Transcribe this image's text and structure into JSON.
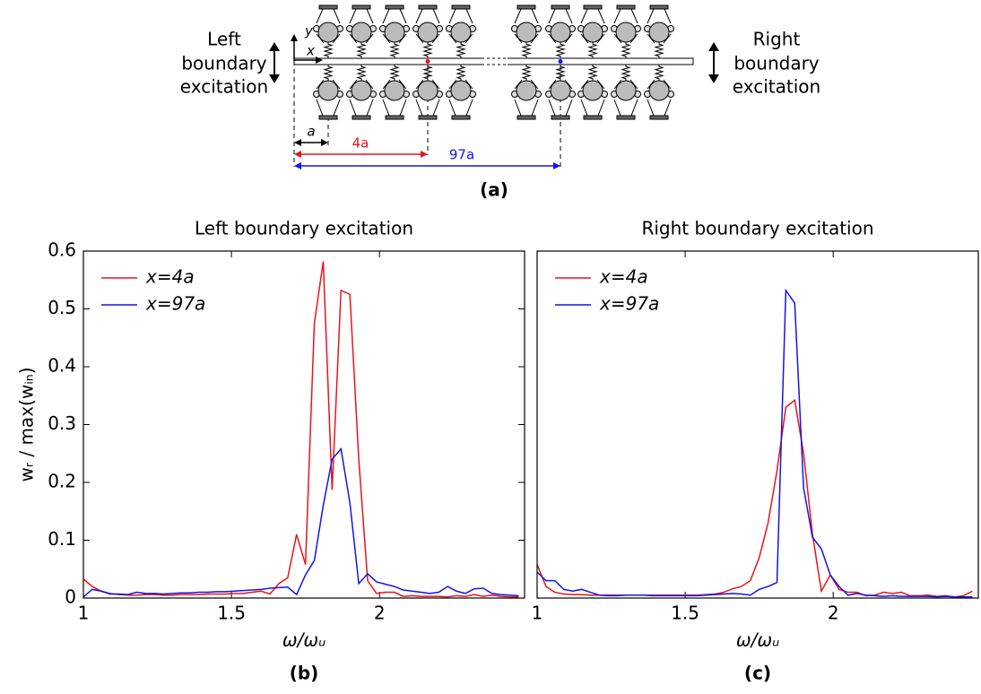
{
  "figure": {
    "panel_label": "(a)",
    "left_label": [
      "Left",
      "boundary",
      "excitation"
    ],
    "right_label": [
      "Right",
      "boundary",
      "excitation"
    ],
    "axis_x": "x",
    "axis_y": "y",
    "dim_a": "a",
    "dim_4a": "4a",
    "dim_97a": "97a"
  },
  "chart_data": [
    {
      "type": "line",
      "title": "Left boundary excitation",
      "panel_label": "(b)",
      "x_label": "ω/ωᵤ",
      "y_label": "wᵣ / max(wᵢₙ)",
      "xlim": [
        1,
        2.49
      ],
      "ylim": [
        0,
        0.6
      ],
      "xticks": [
        1,
        1.5,
        2
      ],
      "yticks": [
        0,
        0.1,
        0.2,
        0.3,
        0.4,
        0.5,
        0.6
      ],
      "legend": "upper left",
      "grid": false,
      "x": [
        1.0,
        1.03,
        1.06,
        1.09,
        1.12,
        1.15,
        1.18,
        1.21,
        1.24,
        1.27,
        1.3,
        1.33,
        1.36,
        1.39,
        1.42,
        1.45,
        1.48,
        1.51,
        1.54,
        1.57,
        1.6,
        1.63,
        1.66,
        1.69,
        1.72,
        1.75,
        1.78,
        1.81,
        1.84,
        1.87,
        1.9,
        1.93,
        1.96,
        1.99,
        2.02,
        2.05,
        2.08,
        2.11,
        2.14,
        2.17,
        2.2,
        2.23,
        2.26,
        2.29,
        2.32,
        2.35,
        2.38,
        2.41,
        2.44,
        2.47
      ],
      "series": [
        {
          "name": "x=4a",
          "color": "#e8141b",
          "values": [
            0.033,
            0.02,
            0.012,
            0.008,
            0.006,
            0.005,
            0.005,
            0.006,
            0.006,
            0.005,
            0.005,
            0.006,
            0.006,
            0.006,
            0.007,
            0.007,
            0.007,
            0.008,
            0.008,
            0.01,
            0.012,
            0.007,
            0.025,
            0.035,
            0.11,
            0.058,
            0.475,
            0.582,
            0.187,
            0.532,
            0.525,
            0.24,
            0.03,
            0.008,
            0.01,
            0.01,
            0.003,
            0.004,
            0.003,
            0.003,
            0.003,
            0.002,
            0.004,
            0.003,
            0.006,
            0.003,
            0.005,
            0.003,
            0.002,
            0.002
          ]
        },
        {
          "name": "x=97a",
          "color": "#1414e6",
          "values": [
            0.002,
            0.015,
            0.012,
            0.007,
            0.007,
            0.006,
            0.01,
            0.008,
            0.008,
            0.007,
            0.008,
            0.009,
            0.009,
            0.01,
            0.01,
            0.011,
            0.011,
            0.012,
            0.013,
            0.014,
            0.015,
            0.017,
            0.018,
            0.019,
            0.006,
            0.04,
            0.065,
            0.16,
            0.24,
            0.258,
            0.165,
            0.025,
            0.042,
            0.028,
            0.024,
            0.02,
            0.014,
            0.012,
            0.01,
            0.008,
            0.01,
            0.02,
            0.012,
            0.008,
            0.016,
            0.017,
            0.008,
            0.006,
            0.005,
            0.004
          ]
        }
      ]
    },
    {
      "type": "line",
      "title": "Right boundary excitation",
      "panel_label": "(c)",
      "x_label": "ω/ωᵤ",
      "xlim": [
        1,
        2.49
      ],
      "ylim": [
        0,
        0.6
      ],
      "xticks": [
        1,
        1.5,
        2
      ],
      "legend": "upper left",
      "grid": false,
      "x": [
        1.0,
        1.03,
        1.06,
        1.09,
        1.12,
        1.15,
        1.18,
        1.21,
        1.24,
        1.27,
        1.3,
        1.33,
        1.36,
        1.39,
        1.42,
        1.45,
        1.48,
        1.51,
        1.54,
        1.57,
        1.6,
        1.63,
        1.66,
        1.69,
        1.72,
        1.75,
        1.78,
        1.81,
        1.84,
        1.87,
        1.9,
        1.93,
        1.96,
        1.99,
        2.02,
        2.05,
        2.08,
        2.11,
        2.14,
        2.17,
        2.2,
        2.23,
        2.26,
        2.29,
        2.32,
        2.35,
        2.38,
        2.41,
        2.44,
        2.47
      ],
      "series": [
        {
          "name": "x=4a",
          "color": "#e8141b",
          "values": [
            0.058,
            0.02,
            0.01,
            0.007,
            0.006,
            0.006,
            0.005,
            0.005,
            0.005,
            0.005,
            0.005,
            0.005,
            0.005,
            0.005,
            0.005,
            0.005,
            0.005,
            0.005,
            0.005,
            0.006,
            0.007,
            0.01,
            0.016,
            0.02,
            0.03,
            0.07,
            0.13,
            0.22,
            0.33,
            0.342,
            0.25,
            0.11,
            0.012,
            0.04,
            0.015,
            0.01,
            0.01,
            0.004,
            0.005,
            0.01,
            0.008,
            0.01,
            0.004,
            0.004,
            0.005,
            0.003,
            0.004,
            0.002,
            0.004,
            0.012
          ]
        },
        {
          "name": "x=97a",
          "color": "#1414e6",
          "values": [
            0.045,
            0.03,
            0.03,
            0.015,
            0.012,
            0.015,
            0.01,
            0.005,
            0.004,
            0.004,
            0.005,
            0.005,
            0.005,
            0.004,
            0.004,
            0.004,
            0.004,
            0.004,
            0.004,
            0.005,
            0.006,
            0.007,
            0.008,
            0.007,
            0.005,
            0.015,
            0.02,
            0.027,
            0.532,
            0.51,
            0.19,
            0.105,
            0.085,
            0.04,
            0.02,
            0.005,
            0.008,
            0.005,
            0.004,
            0.003,
            0.004,
            0.003,
            0.003,
            0.003,
            0.003,
            0.002,
            0.003,
            0.002,
            0.002,
            0.002
          ]
        }
      ]
    }
  ]
}
